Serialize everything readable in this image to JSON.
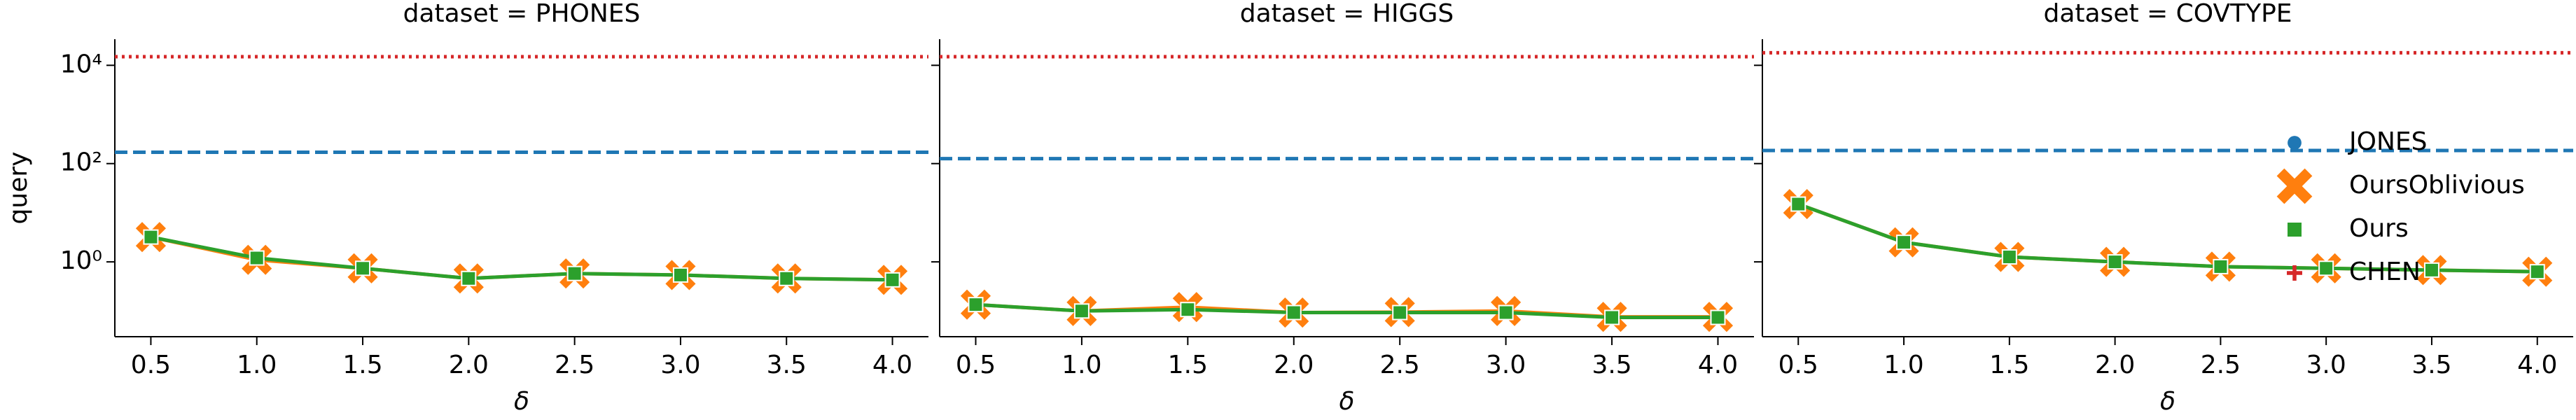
{
  "chart_data": [
    {
      "type": "line",
      "title": "dataset = PHONES",
      "xlabel": "δ",
      "ylabel": "query",
      "x": [
        0.5,
        1.0,
        1.5,
        2.0,
        2.5,
        3.0,
        3.5,
        4.0
      ],
      "xlim": [
        0.33,
        4.17
      ],
      "xticks": [
        0.5,
        {
          "value": 1,
          "label": "1.0"
        },
        1.5,
        {
          "value": 2,
          "label": "2.0"
        },
        2.5,
        {
          "value": 3,
          "label": "3.0"
        },
        3.5,
        {
          "value": 4,
          "label": "4.0"
        }
      ],
      "ylim": [
        0.03,
        34000
      ],
      "ylog": true,
      "yticks": [
        {
          "value": 1,
          "label": "10⁰"
        },
        {
          "value": 100,
          "label": "10²"
        },
        {
          "value": 10000,
          "label": "10⁴"
        }
      ],
      "series": [
        {
          "color": "#1f77b4",
          "marker": "circle",
          "linestyle": "dashed",
          "value": 170
        },
        {
          "color": "#ff7f0e",
          "marker": "x",
          "values": [
            3.2,
            1.1,
            0.74,
            0.46,
            0.58,
            0.54,
            0.46,
            0.43
          ]
        },
        {
          "color": "#2ca02c",
          "marker": "square",
          "values": [
            3.2,
            1.2,
            0.74,
            0.46,
            0.58,
            0.54,
            0.46,
            0.43
          ]
        },
        {
          "color": "#d62728",
          "marker": "plus",
          "linestyle": "dotted",
          "value": 15000
        }
      ]
    },
    {
      "type": "line",
      "title": "dataset = HIGGS",
      "xlabel": "δ",
      "x": [
        0.5,
        1.0,
        1.5,
        2.0,
        2.5,
        3.0,
        3.5,
        4.0
      ],
      "xlim": [
        0.33,
        4.17
      ],
      "xticks": [
        0.5,
        {
          "value": 1,
          "label": "1.0"
        },
        1.5,
        {
          "value": 2,
          "label": "2.0"
        },
        2.5,
        {
          "value": 3,
          "label": "3.0"
        },
        3.5,
        {
          "value": 4,
          "label": "4.0"
        }
      ],
      "ylim": [
        0.03,
        34000
      ],
      "ylog": true,
      "yticks": [
        1,
        100,
        10000
      ],
      "series": [
        {
          "color": "#1f77b4",
          "marker": "circle",
          "linestyle": "dashed",
          "value": 126
        },
        {
          "color": "#ff7f0e",
          "marker": "x",
          "values": [
            0.135,
            0.1,
            0.12,
            0.093,
            0.095,
            0.1,
            0.076,
            0.076
          ]
        },
        {
          "color": "#2ca02c",
          "marker": "square",
          "values": [
            0.135,
            0.1,
            0.107,
            0.093,
            0.093,
            0.093,
            0.074,
            0.074
          ]
        },
        {
          "color": "#d62728",
          "marker": "plus",
          "linestyle": "dotted",
          "value": 15000
        }
      ]
    },
    {
      "type": "line",
      "title": "dataset = COVTYPE",
      "xlabel": "δ",
      "x": [
        0.5,
        1.0,
        1.5,
        2.0,
        2.5,
        3.0,
        3.5,
        4.0
      ],
      "xlim": [
        0.33,
        4.17
      ],
      "xticks": [
        0.5,
        {
          "value": 1,
          "label": "1.0"
        },
        1.5,
        {
          "value": 2,
          "label": "2.0"
        },
        2.5,
        {
          "value": 3,
          "label": "3.0"
        },
        3.5,
        {
          "value": 4,
          "label": "4.0"
        }
      ],
      "ylim": [
        0.03,
        34000
      ],
      "ylog": true,
      "yticks": [
        1,
        100,
        10000
      ],
      "legend": "upper right",
      "series": [
        {
          "name": "JONES",
          "color": "#1f77b4",
          "marker": "circle",
          "linestyle": "dashed",
          "value": 185
        },
        {
          "name": "OursOblivious",
          "color": "#ff7f0e",
          "marker": "x",
          "values": [
            15,
            2.5,
            1.26,
            1.0,
            0.8,
            0.74,
            0.68,
            0.63
          ]
        },
        {
          "name": "Ours",
          "color": "#2ca02c",
          "marker": "square",
          "values": [
            15,
            2.5,
            1.26,
            1.0,
            0.8,
            0.74,
            0.68,
            0.63
          ]
        },
        {
          "name": "CHEN",
          "color": "#d62728",
          "marker": "plus",
          "linestyle": "dotted",
          "value": 18000
        }
      ]
    }
  ]
}
